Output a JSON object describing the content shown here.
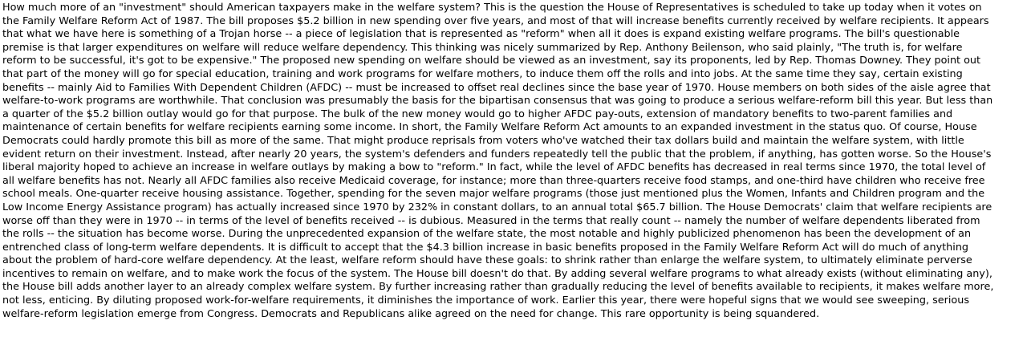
{
  "document": {
    "lines": [
      "How much more of an \"investment\" should American taxpayers make in the welfare system? This is the question the House of Representatives is scheduled to take up today when it votes on",
      "the Family Welfare Reform Act of 1987. The bill proposes $5.2 billion in new spending over five years, and most of that will increase benefits currently received by welfare recipients. It appears",
      "that what we have here is something of a Trojan horse -- a piece of legislation that is represented as \"reform\" when all it does is expand existing welfare programs. The bill's questionable",
      "premise is that larger expenditures on welfare will reduce welfare dependency. This thinking was nicely summarized by Rep. Anthony Beilenson, who said plainly, \"The truth is, for welfare",
      "reform to be successful, it's got to be expensive.\" The proposed new spending on welfare should be viewed as an investment, say its proponents, led by Rep. Thomas Downey. They point out",
      "that part of the money will go for special education, training and work programs for welfare mothers, to induce them off the rolls and into jobs. At the same time they say, certain existing",
      "benefits -- mainly Aid to Families With Dependent Children (AFDC) -- must be increased to offset real declines since the base year of 1970. House members on both sides of the aisle agree that",
      "welfare-to-work programs are worthwhile. That conclusion was presumably the basis for the bipartisan consensus that was going to produce a serious welfare-reform bill this year. But less than",
      "a quarter of the $5.2 billion outlay would go for that purpose. The bulk of the new money would go to higher AFDC pay-outs, extension of mandatory benefits to two-parent families and",
      "maintenance of certain benefits for welfare recipients earning some income. In short, the Family Welfare Reform Act amounts to an expanded investment in the status quo. Of course, House",
      "Democrats could hardly promote this bill as more of the same. That might produce reprisals from voters who've watched their tax dollars build and maintain the welfare system, with little",
      "evident return on their investment. Instead, after nearly 20 years, the system's defenders and funders repeatedly tell the public that the problem, if anything, has gotten worse. So the House's",
      "liberal majority hoped to achieve an increase in welfare outlays by making a bow to \"reform.\" In fact, while the level of AFDC benefits has decreased in real terms since 1970, the total level of",
      "all welfare benefits has not. Nearly all AFDC families also receive Medicaid coverage, for instance; more than three-quarters receive food stamps, and one-third have children who receive free",
      "school meals. One-quarter receive housing assistance. Together, spending for the seven major welfare programs (those just mentioned plus the Women, Infants and Children program and the",
      "Low Income Energy Assistance program) has actually increased since 1970 by 232% in constant dollars, to an annual total $65.7 billion. The House Democrats' claim that welfare recipients are",
      "worse off than they were in 1970 -- in terms of the level of benefits received -- is dubious. Measured in the terms that really count -- namely the number of welfare dependents liberated from",
      "the rolls -- the situation has become worse. During the unprecedented expansion of the welfare state, the most notable and highly publicized phenomenon has been the development of an",
      "entrenched class of long-term welfare dependents. It is difficult to accept that the $4.3 billion increase in basic benefits proposed in the Family Welfare Reform Act will do much of anything",
      "about the problem of hard-core welfare dependency. At the least, welfare reform should have these goals: to shrink rather than enlarge the welfare system, to ultimately eliminate perverse",
      "incentives to remain on welfare, and to make work the focus of the system. The House bill doesn't do that. By adding several welfare programs to what already exists (without eliminating any),",
      "the House bill adds another layer to an already complex welfare system. By further increasing rather than gradually reducing the level of benefits available to recipients, it makes welfare more,",
      "not less, enticing. By diluting proposed work-for-welfare requirements, it diminishes the importance of work. Earlier this year, there were hopeful signs that we would see sweeping, serious",
      "welfare-reform legislation emerge from Congress. Democrats and Republicans alike agreed on the need for change. This rare opportunity is being squandered."
    ]
  }
}
